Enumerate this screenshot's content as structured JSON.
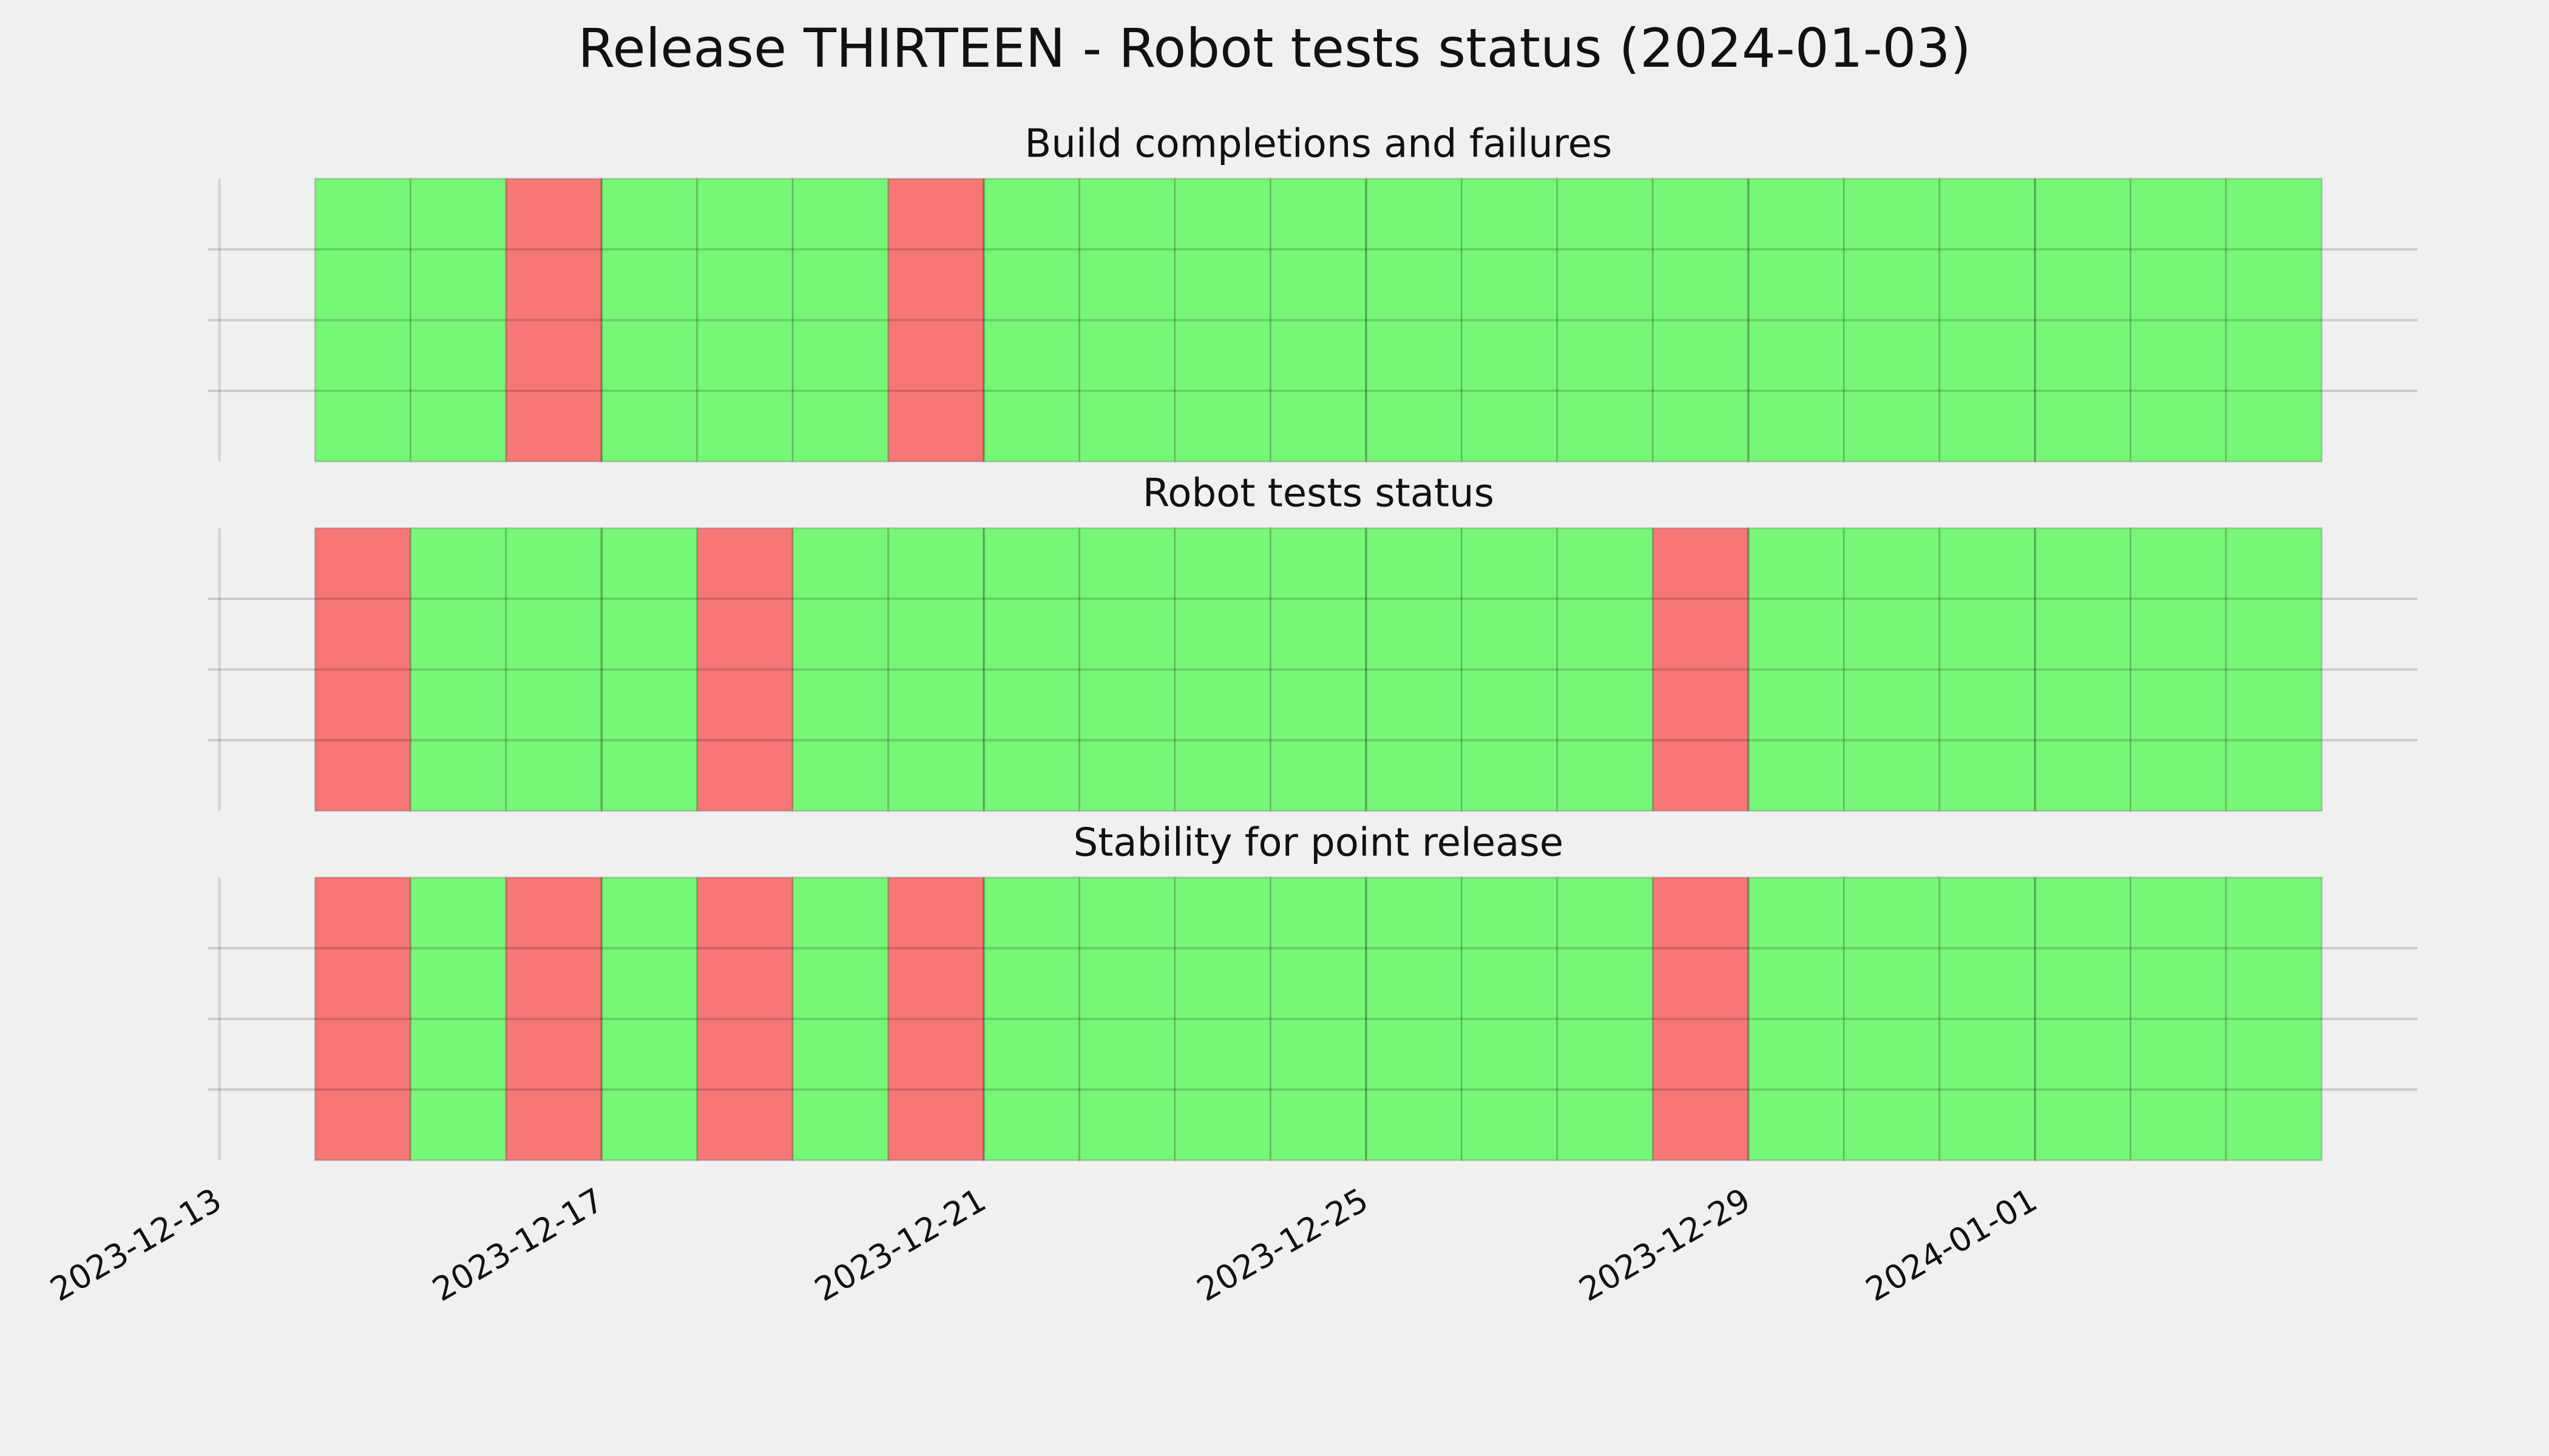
{
  "title": "Release THIRTEEN - Robot tests status (2024-01-03)",
  "chart_data": {
    "type": "bar",
    "x": [
      "2023-12-14",
      "2023-12-15",
      "2023-12-16",
      "2023-12-17",
      "2023-12-18",
      "2023-12-19",
      "2023-12-20",
      "2023-12-21",
      "2023-12-22",
      "2023-12-23",
      "2023-12-24",
      "2023-12-25",
      "2023-12-26",
      "2023-12-27",
      "2023-12-28",
      "2023-12-29",
      "2023-12-30",
      "2023-12-31",
      "2024-01-01",
      "2024-01-02",
      "2024-01-03"
    ],
    "xlim": [
      "2023-12-13",
      "2024-01-05"
    ],
    "xticks": [
      "2023-12-13",
      "2023-12-17",
      "2023-12-21",
      "2023-12-25",
      "2023-12-29",
      "2024-01-01"
    ],
    "ylim": [
      0,
      1
    ],
    "yticks": [
      0.25,
      0.5,
      0.75
    ],
    "grid": true,
    "colors": [
      "#f77777",
      "#77f777"
    ],
    "panels": [
      {
        "title": "Build completions and failures",
        "values": [
          1,
          1,
          0,
          1,
          1,
          1,
          0,
          1,
          1,
          1,
          1,
          1,
          1,
          1,
          1,
          1,
          1,
          1,
          1,
          1,
          1
        ]
      },
      {
        "title": "Robot tests status",
        "values": [
          0,
          1,
          1,
          1,
          0,
          1,
          1,
          1,
          1,
          1,
          1,
          1,
          1,
          1,
          0,
          1,
          1,
          1,
          1,
          1,
          1
        ]
      },
      {
        "title": "Stability for point release",
        "values": [
          0,
          1,
          0,
          1,
          0,
          1,
          0,
          1,
          1,
          1,
          1,
          1,
          1,
          1,
          0,
          1,
          1,
          1,
          1,
          1,
          1
        ]
      }
    ]
  }
}
